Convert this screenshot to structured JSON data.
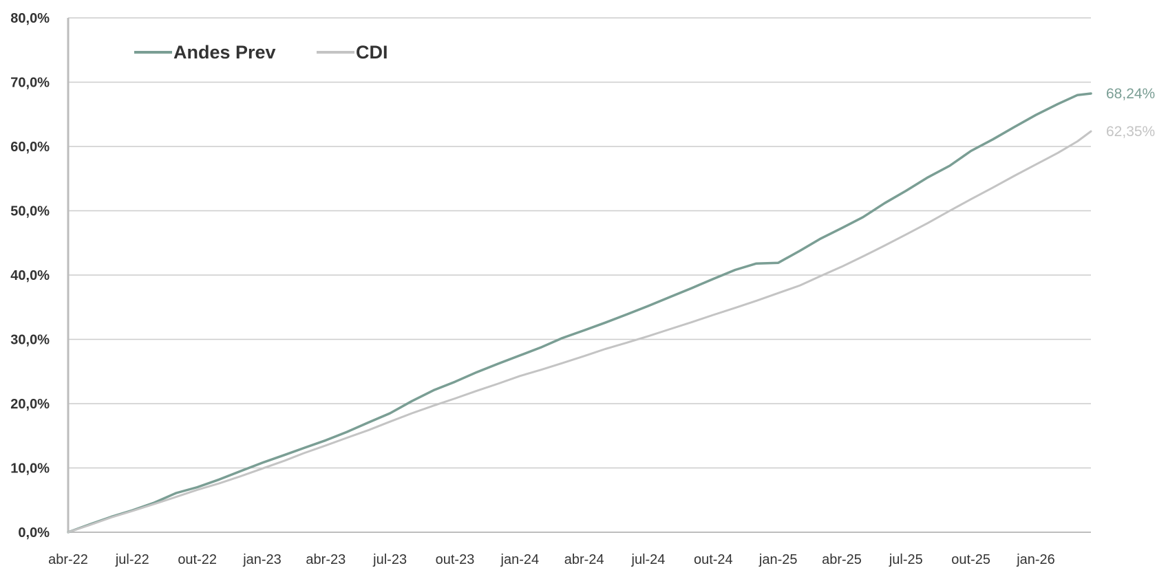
{
  "chart_data": {
    "type": "line",
    "title": "",
    "xlabel": "",
    "ylabel": "",
    "ylim": [
      0,
      80
    ],
    "y_ticks": [
      "0,0%",
      "10,0%",
      "20,0%",
      "30,0%",
      "40,0%",
      "50,0%",
      "60,0%",
      "70,0%",
      "80,0%"
    ],
    "x_tick_labels": [
      "abr-22",
      "jul-22",
      "out-22",
      "jan-23",
      "abr-23",
      "jul-23",
      "out-23",
      "jan-24",
      "abr-24",
      "jul-24",
      "out-24",
      "jan-25",
      "abr-25",
      "jul-25",
      "out-25",
      "jan-26"
    ],
    "grid": true,
    "legend": {
      "position": "top-left"
    },
    "series": [
      {
        "name": "Andes Prev",
        "color": "#7a9e94",
        "end_label": "68,24%",
        "points": [
          [
            "2022-04-01",
            0.0
          ],
          [
            "2022-05-01",
            1.2
          ],
          [
            "2022-06-01",
            2.4
          ],
          [
            "2022-07-01",
            3.4
          ],
          [
            "2022-08-01",
            4.6
          ],
          [
            "2022-09-01",
            6.1
          ],
          [
            "2022-10-01",
            7.0
          ],
          [
            "2022-11-01",
            8.2
          ],
          [
            "2022-12-01",
            9.5
          ],
          [
            "2023-01-01",
            10.8
          ],
          [
            "2023-02-01",
            12.0
          ],
          [
            "2023-03-01",
            13.1
          ],
          [
            "2023-04-01",
            14.3
          ],
          [
            "2023-05-01",
            15.6
          ],
          [
            "2023-06-01",
            17.1
          ],
          [
            "2023-07-01",
            18.5
          ],
          [
            "2023-08-01",
            20.4
          ],
          [
            "2023-09-01",
            22.1
          ],
          [
            "2023-10-01",
            23.4
          ],
          [
            "2023-11-01",
            24.9
          ],
          [
            "2023-12-01",
            26.2
          ],
          [
            "2024-01-01",
            27.5
          ],
          [
            "2024-02-01",
            28.8
          ],
          [
            "2024-03-01",
            30.2
          ],
          [
            "2024-04-01",
            31.4
          ],
          [
            "2024-05-01",
            32.6
          ],
          [
            "2024-06-01",
            33.9
          ],
          [
            "2024-07-01",
            35.2
          ],
          [
            "2024-08-01",
            36.6
          ],
          [
            "2024-09-01",
            38.0
          ],
          [
            "2024-10-01",
            39.4
          ],
          [
            "2024-11-01",
            40.8
          ],
          [
            "2024-12-01",
            41.8
          ],
          [
            "2025-01-01",
            41.9
          ],
          [
            "2025-02-01",
            43.8
          ],
          [
            "2025-03-01",
            45.6
          ],
          [
            "2025-04-01",
            47.3
          ],
          [
            "2025-05-01",
            49.0
          ],
          [
            "2025-06-01",
            51.2
          ],
          [
            "2025-07-01",
            53.1
          ],
          [
            "2025-08-01",
            55.2
          ],
          [
            "2025-09-01",
            57.0
          ],
          [
            "2025-10-01",
            59.3
          ],
          [
            "2025-11-01",
            61.1
          ],
          [
            "2025-12-01",
            63.0
          ],
          [
            "2026-01-01",
            64.9
          ],
          [
            "2026-02-01",
            66.6
          ],
          [
            "2026-03-01",
            68.0
          ],
          [
            "2026-03-20",
            68.24
          ]
        ]
      },
      {
        "name": "CDI",
        "color": "#c4c4c4",
        "end_label": "62,35%",
        "points": [
          [
            "2022-04-01",
            0.0
          ],
          [
            "2022-05-01",
            1.1
          ],
          [
            "2022-06-01",
            2.3
          ],
          [
            "2022-07-01",
            3.3
          ],
          [
            "2022-08-01",
            4.4
          ],
          [
            "2022-09-01",
            5.5
          ],
          [
            "2022-10-01",
            6.6
          ],
          [
            "2022-11-01",
            7.6
          ],
          [
            "2022-12-01",
            8.7
          ],
          [
            "2023-01-01",
            9.9
          ],
          [
            "2023-02-01",
            11.1
          ],
          [
            "2023-03-01",
            12.3
          ],
          [
            "2023-04-01",
            13.5
          ],
          [
            "2023-05-01",
            14.7
          ],
          [
            "2023-06-01",
            15.9
          ],
          [
            "2023-07-01",
            17.2
          ],
          [
            "2023-08-01",
            18.5
          ],
          [
            "2023-09-01",
            19.7
          ],
          [
            "2023-10-01",
            20.8
          ],
          [
            "2023-11-01",
            22.0
          ],
          [
            "2023-12-01",
            23.1
          ],
          [
            "2024-01-01",
            24.3
          ],
          [
            "2024-02-01",
            25.3
          ],
          [
            "2024-03-01",
            26.3
          ],
          [
            "2024-04-01",
            27.4
          ],
          [
            "2024-05-01",
            28.5
          ],
          [
            "2024-06-01",
            29.5
          ],
          [
            "2024-07-01",
            30.5
          ],
          [
            "2024-08-01",
            31.6
          ],
          [
            "2024-09-01",
            32.7
          ],
          [
            "2024-10-01",
            33.8
          ],
          [
            "2024-11-01",
            34.9
          ],
          [
            "2024-12-01",
            36.0
          ],
          [
            "2025-01-01",
            37.2
          ],
          [
            "2025-02-01",
            38.4
          ],
          [
            "2025-03-01",
            39.8
          ],
          [
            "2025-04-01",
            41.3
          ],
          [
            "2025-05-01",
            42.9
          ],
          [
            "2025-06-01",
            44.6
          ],
          [
            "2025-07-01",
            46.3
          ],
          [
            "2025-08-01",
            48.1
          ],
          [
            "2025-09-01",
            50.0
          ],
          [
            "2025-10-01",
            51.8
          ],
          [
            "2025-11-01",
            53.6
          ],
          [
            "2025-12-01",
            55.4
          ],
          [
            "2026-01-01",
            57.2
          ],
          [
            "2026-02-01",
            59.0
          ],
          [
            "2026-03-01",
            60.8
          ],
          [
            "2026-03-20",
            62.35
          ]
        ]
      }
    ]
  }
}
